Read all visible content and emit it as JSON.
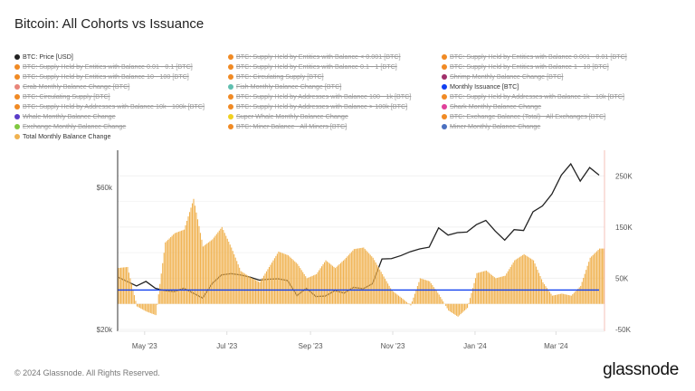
{
  "title": "Bitcoin: All Cohorts vs Issuance",
  "footer": "© 2024 Glassnode. All Rights Reserved.",
  "logo": "glassnode",
  "legend": [
    {
      "label": "BTC: Price [USD]",
      "color": "#222222",
      "active": true
    },
    {
      "label": "BTC: Supply Held by Entities with Balance < 0.001 [BTC]",
      "color": "#f08a24",
      "active": false
    },
    {
      "label": "BTC: Supply Held by Entities with Balance 0.001 - 0.01 [BTC]",
      "color": "#f08a24",
      "active": false
    },
    {
      "label": "BTC: Supply Held by Entities with Balance 0.01 - 0.1 [BTC]",
      "color": "#f08a24",
      "active": false
    },
    {
      "label": "BTC: Supply Held by Entities with Balance 0.1 - 1 [BTC]",
      "color": "#f08a24",
      "active": false
    },
    {
      "label": "BTC: Supply Held by Entities with Balance 1 - 10 [BTC]",
      "color": "#f08a24",
      "active": false
    },
    {
      "label": "BTC: Supply Held by Entities with Balance 10 - 100 [BTC]",
      "color": "#f08a24",
      "active": false
    },
    {
      "label": "BTC: Circulating Supply [BTC]",
      "color": "#f08a24",
      "active": false
    },
    {
      "label": "Shrimp Monthly Balance Change [BTC]",
      "color": "#a0306a",
      "active": false
    },
    {
      "label": "Crab Monthly Balance Change [BTC]",
      "color": "#e8857a",
      "active": false
    },
    {
      "label": "Fish Monthly Balance Change [BTC]",
      "color": "#5fbfb0",
      "active": false
    },
    {
      "label": "Monthly Issuance [BTC]",
      "color": "#1040f0",
      "active": true
    },
    {
      "label": "BTC: Circulating Supply [BTC]",
      "color": "#f08a24",
      "active": false
    },
    {
      "label": "BTC: Supply Held by Addresses with Balance 100 - 1k [BTC]",
      "color": "#f08a24",
      "active": false
    },
    {
      "label": "BTC: Supply Held by Addresses with Balance 1k - 10k [BTC]",
      "color": "#f08a24",
      "active": false
    },
    {
      "label": "BTC: Supply Held by Addresses with Balance 10k - 100k [BTC]",
      "color": "#f08a24",
      "active": false
    },
    {
      "label": "BTC: Supply Held by Addresses with Balance > 100k [BTC]",
      "color": "#f08a24",
      "active": false
    },
    {
      "label": "Shark Monthly Balance Change",
      "color": "#e0409a",
      "active": false
    },
    {
      "label": "Whale Monthly Balance Change",
      "color": "#5a3cc8",
      "active": false
    },
    {
      "label": "Super Whale Monthly Balance Change",
      "color": "#f0d020",
      "active": false
    },
    {
      "label": "BTC: Exchange Balance (Total) - All Exchanges [BTC]",
      "color": "#f08a24",
      "active": false
    },
    {
      "label": "Exchange Monthly Balance Change",
      "color": "#80c840",
      "active": false
    },
    {
      "label": "BTC: Miner Balance - All Miners [BTC]",
      "color": "#f08a24",
      "active": false
    },
    {
      "label": "Miner Monthly Balance Change",
      "color": "#4a70c0",
      "active": false
    },
    {
      "label": "Total Monthly Balance Change",
      "color": "#f0b250",
      "active": true
    }
  ],
  "chart_data": {
    "type": "bar+line",
    "title": "Bitcoin: All Cohorts vs Issuance",
    "x": [
      "2023-04-11",
      "2023-04-18",
      "2023-04-25",
      "2023-05-02",
      "2023-05-09",
      "2023-05-16",
      "2023-05-23",
      "2023-05-30",
      "2023-06-06",
      "2023-06-13",
      "2023-06-20",
      "2023-06-27",
      "2023-07-04",
      "2023-07-11",
      "2023-07-18",
      "2023-07-25",
      "2023-08-01",
      "2023-08-08",
      "2023-08-15",
      "2023-08-22",
      "2023-08-29",
      "2023-09-05",
      "2023-09-12",
      "2023-09-19",
      "2023-09-26",
      "2023-10-03",
      "2023-10-10",
      "2023-10-17",
      "2023-10-24",
      "2023-10-31",
      "2023-11-07",
      "2023-11-14",
      "2023-11-21",
      "2023-11-28",
      "2023-12-05",
      "2023-12-12",
      "2023-12-19",
      "2023-12-26",
      "2024-01-02",
      "2024-01-09",
      "2024-01-16",
      "2024-01-23",
      "2024-01-30",
      "2024-02-06",
      "2024-02-13",
      "2024-02-20",
      "2024-02-27",
      "2024-03-05",
      "2024-03-12",
      "2024-03-19",
      "2024-03-26",
      "2024-04-02"
    ],
    "x_ticks": [
      {
        "date": "2023-05-01",
        "label": "May '23"
      },
      {
        "date": "2023-07-01",
        "label": "Jul '23"
      },
      {
        "date": "2023-09-01",
        "label": "Sep '23"
      },
      {
        "date": "2023-11-01",
        "label": "Nov '23"
      },
      {
        "date": "2024-01-01",
        "label": "Jan '24"
      },
      {
        "date": "2024-03-01",
        "label": "Mar '24"
      }
    ],
    "xlim": [
      "2023-04-11",
      "2024-04-06"
    ],
    "series": [
      {
        "name": "BTC: Price [USD]",
        "type": "line",
        "axis": "left",
        "color": "#222222",
        "values": [
          30000,
          29000,
          28000,
          29000,
          27500,
          27000,
          26800,
          27500,
          26500,
          25500,
          28500,
          30500,
          30800,
          30500,
          30000,
          29300,
          29500,
          29600,
          29200,
          26000,
          27500,
          25800,
          25900,
          27000,
          26500,
          27700,
          27400,
          28500,
          34500,
          34600,
          35400,
          36500,
          37300,
          37800,
          43900,
          41500,
          42300,
          42500,
          45000,
          46500,
          42800,
          39900,
          43300,
          43000,
          49700,
          52000,
          57000,
          66000,
          72000,
          63000,
          70000,
          66000
        ]
      },
      {
        "name": "Total Monthly Balance Change",
        "type": "bar",
        "axis": "right",
        "color": "#f0b250",
        "values": [
          70000,
          72000,
          -5000,
          -15000,
          -22000,
          120000,
          138000,
          145000,
          205000,
          112000,
          126000,
          150000,
          110000,
          64000,
          52000,
          42000,
          72000,
          102000,
          95000,
          78000,
          50000,
          58000,
          85000,
          70000,
          87000,
          107000,
          110000,
          90000,
          58000,
          26000,
          12000,
          -3000,
          50000,
          44000,
          18000,
          -13000,
          -25000,
          -8000,
          60000,
          65000,
          50000,
          55000,
          85000,
          97000,
          85000,
          42000,
          16000,
          20000,
          16000,
          35000,
          90000,
          108000
        ]
      },
      {
        "name": "Monthly Issuance [BTC]",
        "type": "line",
        "axis": "right",
        "color": "#1040f0",
        "values": [
          27000,
          27000,
          27000,
          27000,
          27000,
          27000,
          27000,
          27000,
          27000,
          27000,
          27000,
          27000,
          27000,
          27000,
          27000,
          27000,
          27000,
          27000,
          27000,
          27000,
          27000,
          27000,
          27000,
          27000,
          27000,
          27000,
          27000,
          27000,
          27000,
          27000,
          27000,
          27000,
          27000,
          27000,
          27000,
          27000,
          27000,
          27000,
          27000,
          27000,
          27000,
          27000,
          27000,
          27000,
          27000,
          27000,
          27000,
          27000,
          27000,
          27000,
          27000,
          27000
        ]
      }
    ],
    "left_axis": {
      "scale": "log",
      "ylim": [
        20000,
        80000
      ],
      "ticks": [
        {
          "value": 60000,
          "label": "$60k"
        },
        {
          "value": 20000,
          "label": "$20k"
        }
      ]
    },
    "right_axis": {
      "scale": "linear",
      "ylim": [
        -50000,
        300000
      ],
      "ticks": [
        {
          "value": 250000,
          "label": "250K"
        },
        {
          "value": 150000,
          "label": "150K"
        },
        {
          "value": 50000,
          "label": "50K"
        },
        {
          "value": -50000,
          "label": "-50K"
        }
      ]
    },
    "grid": true,
    "legend_position": "top-left"
  }
}
